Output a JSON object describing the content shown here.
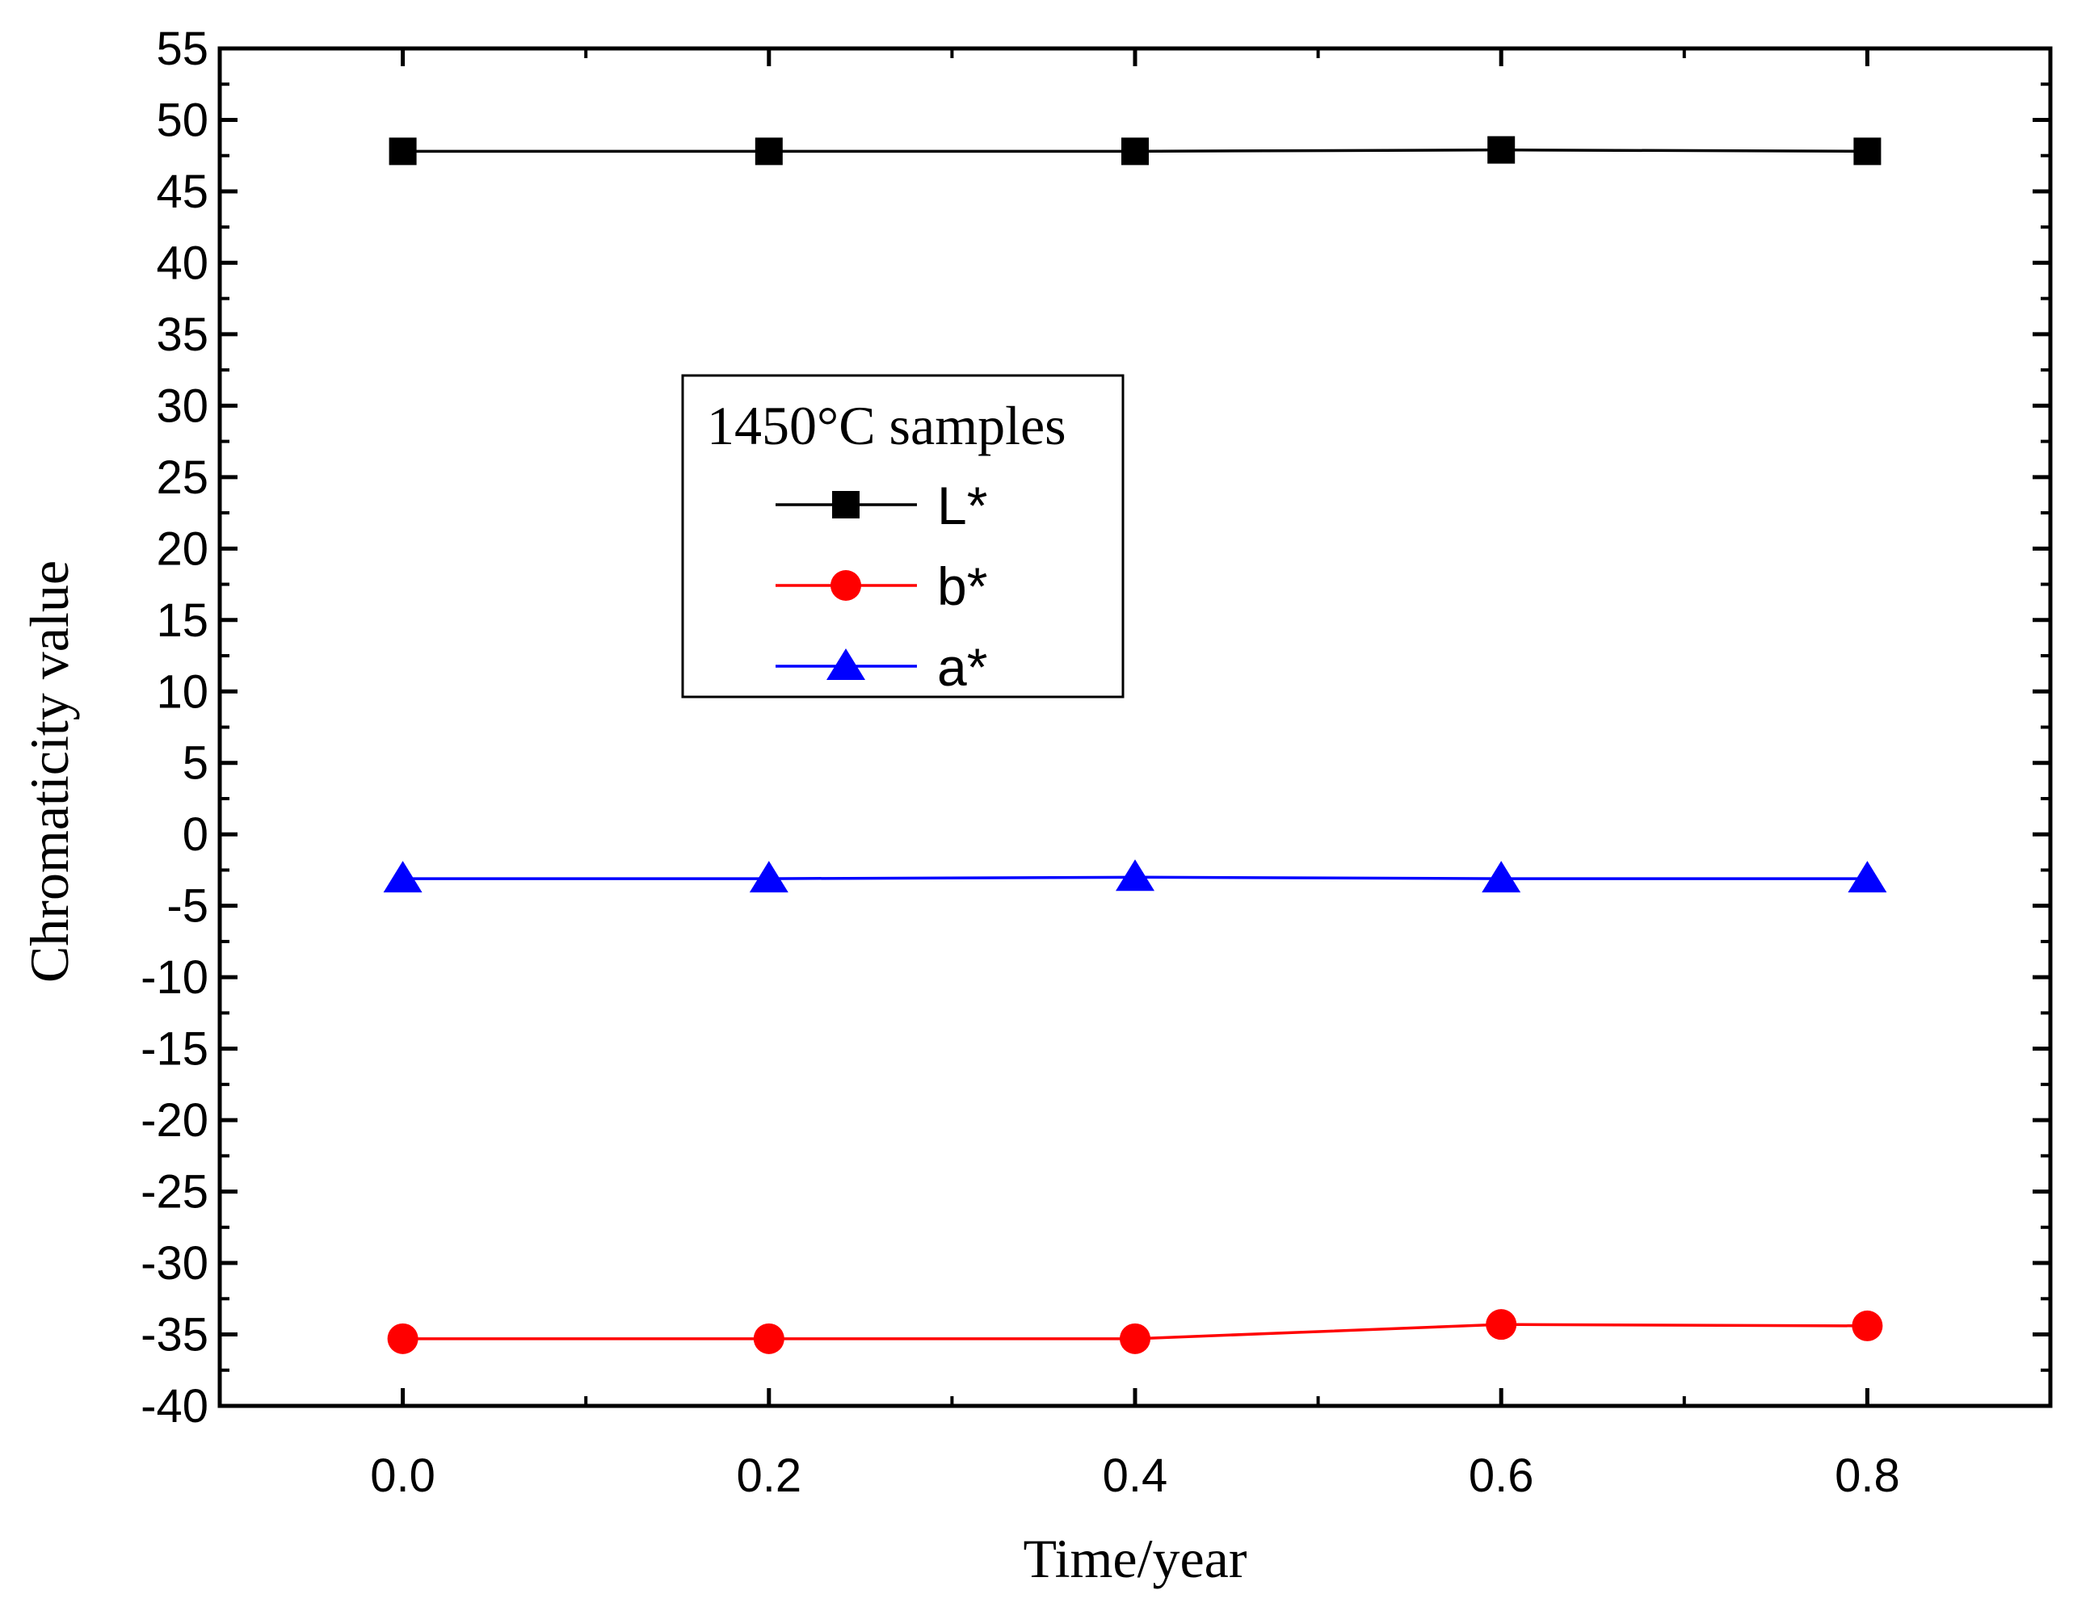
{
  "chart_data": {
    "type": "line",
    "title": "",
    "xlabel": "Time/year",
    "ylabel": "Chromaticity value",
    "xlim": [
      -0.1,
      0.9
    ],
    "ylim": [
      -40,
      55
    ],
    "x": [
      0.0,
      0.2,
      0.4,
      0.6,
      0.8
    ],
    "x_ticks": [
      0.0,
      0.2,
      0.4,
      0.6,
      0.8
    ],
    "x_tick_labels": [
      "0.0",
      "0.2",
      "0.4",
      "0.6",
      "0.8"
    ],
    "x_minor_ticks": [
      0.1,
      0.3,
      0.5,
      0.7
    ],
    "y_ticks": [
      55,
      50,
      45,
      40,
      35,
      30,
      25,
      20,
      15,
      10,
      5,
      0,
      -5,
      -10,
      -15,
      -20,
      -25,
      -30,
      -35,
      -40
    ],
    "y_tick_labels": [
      "55",
      "50",
      "45",
      "40",
      "35",
      "30",
      "25",
      "20",
      "15",
      "10",
      "5",
      "0",
      "-5",
      "-10",
      "-15",
      "-20",
      "-25",
      "-30",
      "-35",
      "-40"
    ],
    "grid": false,
    "legend": {
      "title": "1450°C samples",
      "placement": "center-left"
    },
    "series": [
      {
        "name": "L*",
        "color": "#000000",
        "marker": "square",
        "values": [
          47.8,
          47.8,
          47.8,
          47.9,
          47.8
        ]
      },
      {
        "name": "b*",
        "color": "#ff0000",
        "marker": "circle",
        "values": [
          -35.3,
          -35.3,
          -35.3,
          -34.3,
          -34.4
        ]
      },
      {
        "name": "a*",
        "color": "#0000ff",
        "marker": "triangle",
        "values": [
          -3.1,
          -3.1,
          -3.0,
          -3.1,
          -3.1
        ]
      }
    ]
  }
}
